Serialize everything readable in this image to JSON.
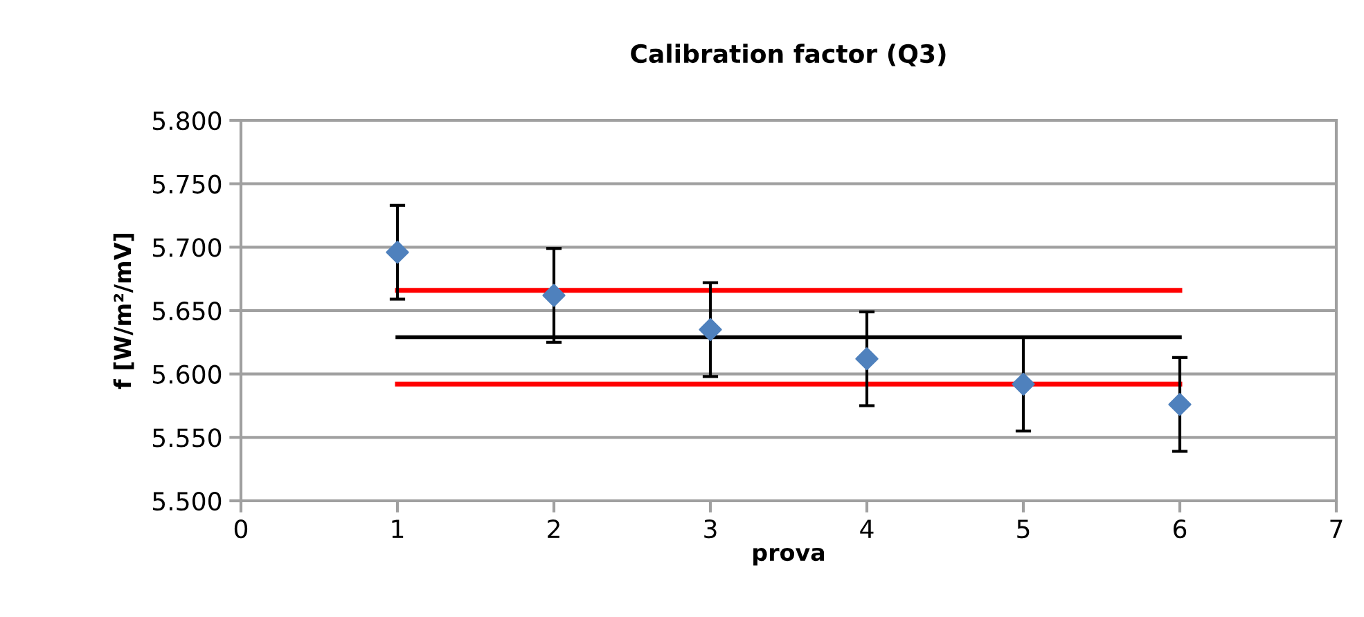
{
  "chart_data": {
    "type": "scatter",
    "title": "Calibration factor (Q3)",
    "xlabel": "prova",
    "ylabel": "f [W/m²/mV]",
    "series": [
      {
        "color": "#4f81bd",
        "marker": "diamond",
        "x": [
          1,
          2,
          3,
          4,
          5,
          6
        ],
        "values": [
          5.696,
          5.662,
          5.635,
          5.612,
          5.592,
          5.576
        ],
        "errors": [
          0.037,
          0.037,
          0.037,
          0.037,
          0.037,
          0.037
        ]
      },
      {
        "type": "line",
        "color": "#ff0000",
        "marker": "none",
        "x": [
          1,
          6
        ],
        "values": [
          5.666,
          5.666
        ]
      },
      {
        "type": "line",
        "color": "#000000",
        "marker": "none",
        "x": [
          1,
          6
        ],
        "values": [
          5.629,
          5.629
        ]
      },
      {
        "type": "line",
        "color": "#ff0000",
        "marker": "none",
        "x": [
          1,
          6
        ],
        "values": [
          5.592,
          5.592
        ]
      }
    ],
    "xlim": [
      0,
      7
    ],
    "xticks": [
      0,
      1,
      2,
      3,
      4,
      5,
      6,
      7
    ],
    "ylim": [
      5.5,
      5.8
    ],
    "yticks": [
      {
        "value": 5.5,
        "label": "5.500"
      },
      {
        "value": 5.55,
        "label": "5.550"
      },
      {
        "value": 5.6,
        "label": "5.600"
      },
      {
        "value": 5.65,
        "label": "5.650"
      },
      {
        "value": 5.7,
        "label": "5.700"
      },
      {
        "value": 5.75,
        "label": "5.750"
      },
      {
        "value": 5.8,
        "label": "5.800"
      }
    ],
    "grid": "y",
    "legend": false
  }
}
